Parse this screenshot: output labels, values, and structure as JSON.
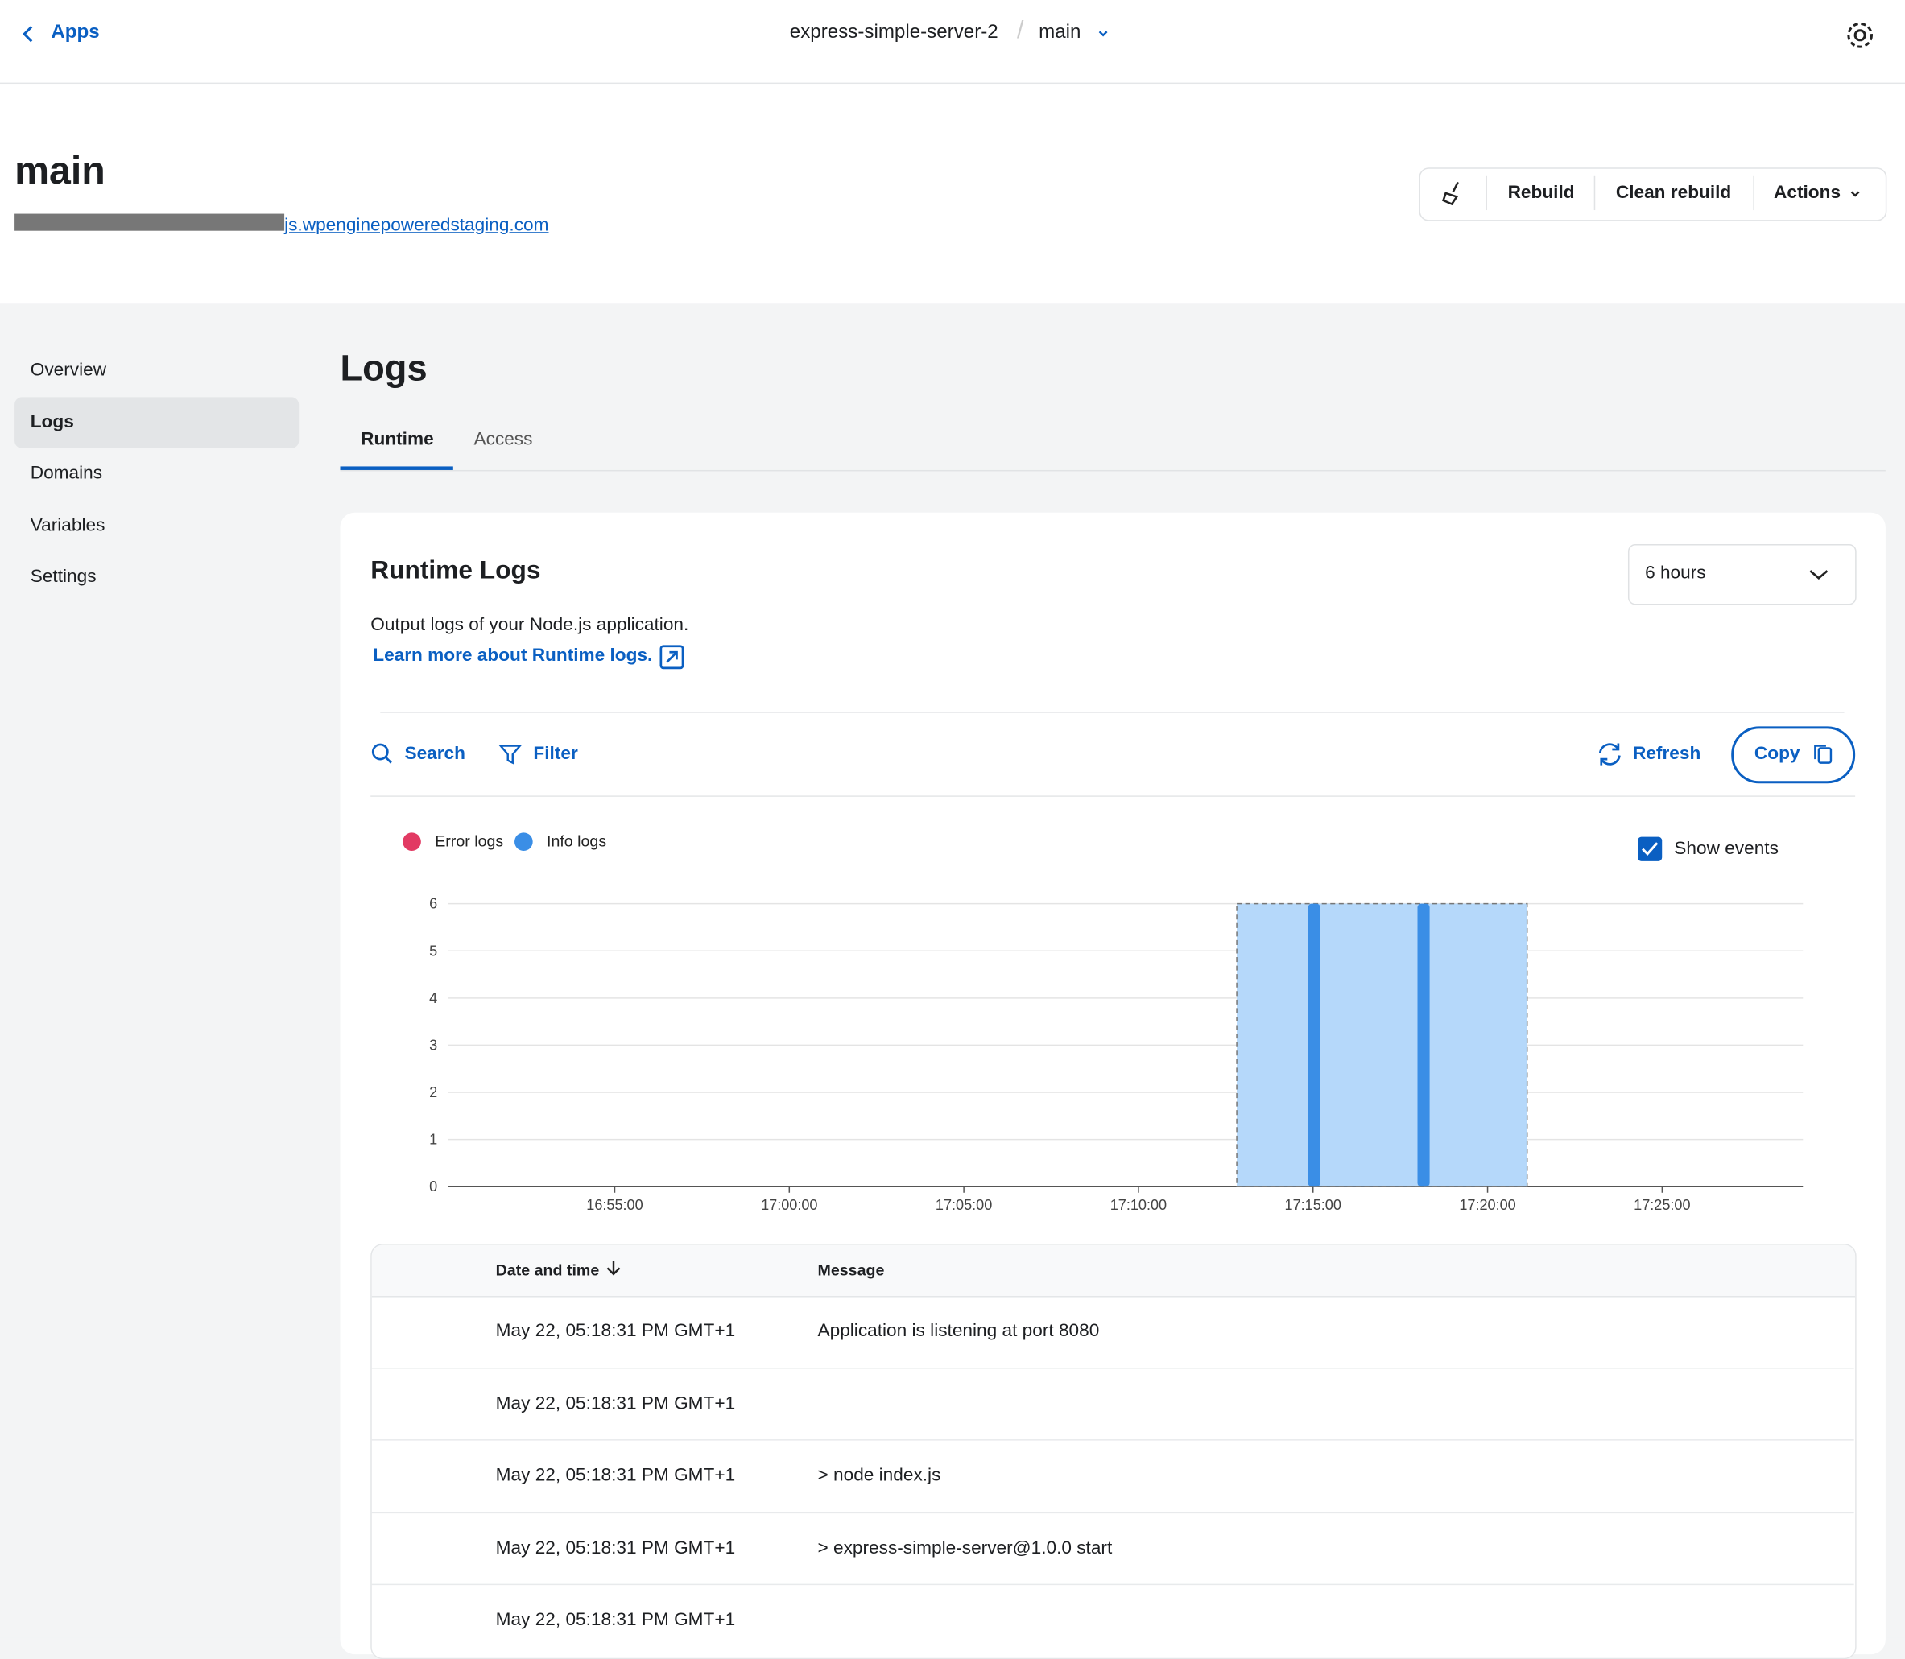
{
  "header": {
    "back": "Apps",
    "app": "express-simple-server-2",
    "branch": "main"
  },
  "env": {
    "title": "main",
    "url": "js.wpenginepoweredstaging.com",
    "buttons": [
      "Rebuild",
      "Clean rebuild",
      "Actions"
    ]
  },
  "sidebar": [
    "Overview",
    "Logs",
    "Domains",
    "Variables",
    "Settings"
  ],
  "page": {
    "title": "Logs",
    "tabs": [
      "Runtime",
      "Access"
    ]
  },
  "card": {
    "title": "Runtime Logs",
    "range": "6 hours",
    "description": "Output logs of your Node.js application.",
    "link": "Learn more about Runtime logs.",
    "tools": [
      "Search",
      "Filter",
      "Refresh",
      "Copy"
    ],
    "show_events": "Show events"
  },
  "chart_data": {
    "type": "bar",
    "x": [
      "17:15:02",
      "17:18:10"
    ],
    "series": [
      {
        "name": "Error logs",
        "color": "#e23a63",
        "values": [
          0,
          0
        ]
      },
      {
        "name": "Info logs",
        "color": "#3a8ee6",
        "values": [
          6,
          6
        ]
      }
    ],
    "xlim": [
      "16:50:14",
      "17:29:02"
    ],
    "xticks": [
      "16:55:00",
      "17:00:00",
      "17:05:00",
      "17:10:00",
      "17:15:00",
      "17:20:00",
      "17:25:00"
    ],
    "ylim": [
      0,
      6
    ],
    "yticks": [
      0,
      1,
      2,
      3,
      4,
      5,
      6
    ],
    "grid": true,
    "events": [
      [
        "17:12:49",
        "17:21:08"
      ]
    ],
    "event_color": "#b5d8fa"
  },
  "table": {
    "columns": [
      "Date and time",
      "Message"
    ],
    "rows": [
      [
        "May 22, 05:18:31 PM GMT+1",
        "Application is listening at port 8080"
      ],
      [
        "May 22, 05:18:31 PM GMT+1",
        null
      ],
      [
        "May 22, 05:18:31 PM GMT+1",
        "> node index.js"
      ],
      [
        "May 22, 05:18:31 PM GMT+1",
        "> express-simple-server@1.0.0 start"
      ],
      [
        "May 22, 05:18:31 PM GMT+1",
        null
      ]
    ]
  }
}
